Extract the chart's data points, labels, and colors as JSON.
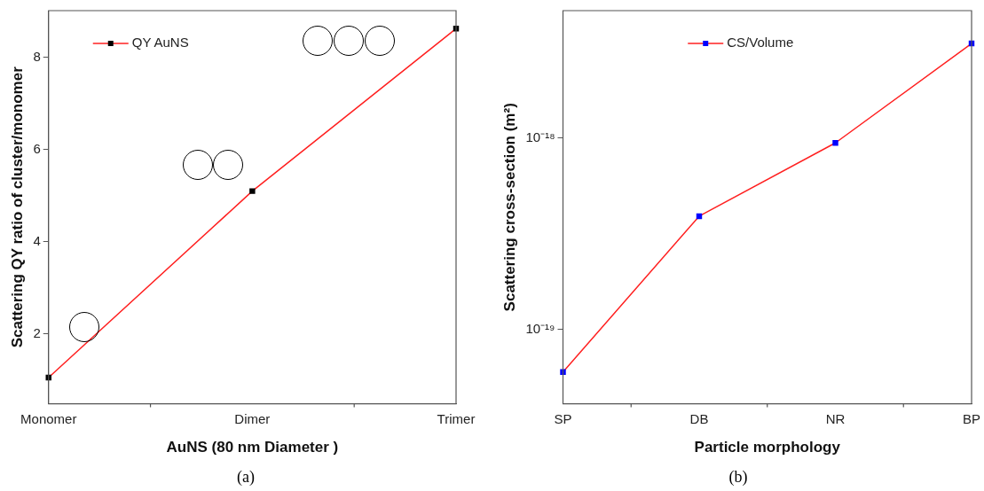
{
  "chart_data": [
    {
      "type": "line",
      "xlabel": "AuNS (80 nm Diameter )",
      "ylabel": "Scattering QY ratio of cluster/monomer",
      "categories": [
        "Monomer",
        "Dimer",
        "Trimer"
      ],
      "series": [
        {
          "name": "QY AuNS",
          "color": "#ff2020",
          "colors": [
            "#000000",
            "#000000",
            "#000000"
          ],
          "values": [
            1.05,
            5.1,
            8.63
          ]
        }
      ],
      "ylim": [
        0.48,
        9.02
      ],
      "yticks": [
        2,
        4,
        6,
        8
      ],
      "grid": false,
      "legend": "top left",
      "marker": "square",
      "line_style": "solid",
      "annotations": [
        "(a)"
      ]
    },
    {
      "type": "line",
      "xlabel": "Particle morphology",
      "ylabel": "Scattering cross-section (m²)",
      "categories": [
        "SP",
        "DB",
        "NR",
        "BP"
      ],
      "series": [
        {
          "name": "CS/Volume",
          "color": "#ff2020",
          "colors": [
            "#0000ff",
            "#0000ff",
            "#0000ff",
            "#0000ff"
          ],
          "values": [
            6e-20,
            3.9e-19,
            9.4e-19,
            3.1e-18
          ]
        }
      ],
      "log": "y",
      "ylim": [
        4.1e-20,
        4.6e-18
      ],
      "yticks": [
        {
          "value": 1e-19,
          "label": "10⁻¹⁹"
        },
        {
          "value": 1e-18,
          "label": "10⁻¹⁸"
        }
      ],
      "grid": false,
      "legend": "top",
      "marker": "square",
      "line_style": "solid",
      "annotations": [
        "(b)"
      ]
    }
  ]
}
